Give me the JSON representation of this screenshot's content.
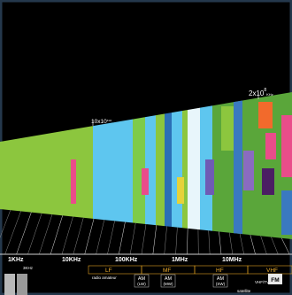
{
  "top_labels": [
    {
      "base": "10x10",
      "unit": "KHz"
    },
    {
      "base": "2x10",
      "exp": "8",
      "unit": "KHz"
    }
  ],
  "scale": [
    "1KHz",
    "10KHz",
    "100KHz",
    "1MHz",
    "10MHz"
  ],
  "scale_sub": "3KHz",
  "bands": [
    "LF",
    "MF",
    "HF",
    "VHF"
  ],
  "services": {
    "radio_amateur": "radio amateur",
    "am_lw": [
      "AM",
      "(LW)"
    ],
    "am_mw": [
      "AM",
      "(MW)"
    ],
    "am_sw": [
      "AM",
      "(SW)"
    ],
    "vhf_tv": "VHF/TV",
    "fm": "FM",
    "satellite": "satellite"
  }
}
